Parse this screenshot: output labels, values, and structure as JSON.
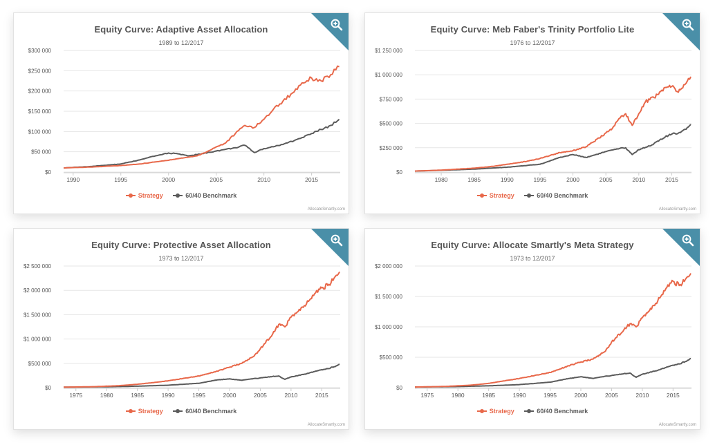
{
  "colors": {
    "strategy": "#e8684a",
    "benchmark": "#5b5b5b",
    "zoom_bg": "#4a8fa8",
    "grid": "#e6e6e6"
  },
  "legend": {
    "strategy": "Strategy",
    "benchmark": "60/40 Benchmark"
  },
  "credit": "AllocateSmartly.com",
  "chart_data": [
    {
      "type": "line",
      "title": "Equity Curve: Adaptive Asset Allocation",
      "subtitle": "1989 to 12/2017",
      "xlim": [
        1989,
        2018
      ],
      "ylim": [
        0,
        300000
      ],
      "x_ticks": [
        1990,
        1995,
        2000,
        2005,
        2010,
        2015
      ],
      "y_ticks": [
        0,
        50000,
        100000,
        150000,
        200000,
        250000,
        300000
      ],
      "y_tick_labels": [
        "$0",
        "$50 000",
        "$100 000",
        "$150 000",
        "$200 000",
        "$250 000",
        "$300 000"
      ],
      "series": [
        {
          "name": "Strategy",
          "points": [
            [
              1989,
              10000
            ],
            [
              1990,
              11000
            ],
            [
              1992,
              12500
            ],
            [
              1995,
              16000
            ],
            [
              1997,
              20000
            ],
            [
              1999,
              26000
            ],
            [
              2001,
              33000
            ],
            [
              2003,
              40000
            ],
            [
              2004,
              50000
            ],
            [
              2005,
              62000
            ],
            [
              2006,
              72000
            ],
            [
              2007,
              95000
            ],
            [
              2008,
              115000
            ],
            [
              2009,
              110000
            ],
            [
              2010,
              130000
            ],
            [
              2011,
              155000
            ],
            [
              2012,
              175000
            ],
            [
              2013,
              195000
            ],
            [
              2014,
              220000
            ],
            [
              2015,
              232000
            ],
            [
              2016,
              225000
            ],
            [
              2017,
              240000
            ],
            [
              2017.9,
              260000
            ]
          ]
        },
        {
          "name": "60/40 Benchmark",
          "points": [
            [
              1989,
              10000
            ],
            [
              1990,
              11500
            ],
            [
              1992,
              14000
            ],
            [
              1995,
              20000
            ],
            [
              1997,
              30000
            ],
            [
              1999,
              42000
            ],
            [
              2000,
              47000
            ],
            [
              2001,
              45000
            ],
            [
              2002,
              40000
            ],
            [
              2003,
              43000
            ],
            [
              2005,
              52000
            ],
            [
              2007,
              60000
            ],
            [
              2008,
              66000
            ],
            [
              2009,
              48000
            ],
            [
              2010,
              58000
            ],
            [
              2012,
              68000
            ],
            [
              2014,
              85000
            ],
            [
              2015,
              95000
            ],
            [
              2016,
              105000
            ],
            [
              2017,
              115000
            ],
            [
              2017.9,
              130000
            ]
          ]
        }
      ]
    },
    {
      "type": "line",
      "title": "Equity Curve: Meb Faber's Trinity Portfolio Lite",
      "subtitle": "1976 to 12/2017",
      "xlim": [
        1976,
        2018
      ],
      "ylim": [
        0,
        1250000
      ],
      "x_ticks": [
        1980,
        1985,
        1990,
        1995,
        2000,
        2005,
        2010,
        2015
      ],
      "y_ticks": [
        0,
        250000,
        500000,
        750000,
        1000000,
        1250000
      ],
      "y_tick_labels": [
        "$0",
        "$250 000",
        "$500 000",
        "$750 000",
        "$1 000 000",
        "$1 250 000"
      ],
      "series": [
        {
          "name": "Strategy",
          "points": [
            [
              1976,
              10000
            ],
            [
              1980,
              20000
            ],
            [
              1985,
              40000
            ],
            [
              1988,
              60000
            ],
            [
              1990,
              80000
            ],
            [
              1993,
              110000
            ],
            [
              1995,
              140000
            ],
            [
              1998,
              200000
            ],
            [
              2000,
              220000
            ],
            [
              2002,
              260000
            ],
            [
              2004,
              350000
            ],
            [
              2006,
              450000
            ],
            [
              2007,
              550000
            ],
            [
              2008,
              600000
            ],
            [
              2009,
              480000
            ],
            [
              2010,
              600000
            ],
            [
              2011,
              720000
            ],
            [
              2013,
              800000
            ],
            [
              2014,
              870000
            ],
            [
              2015,
              880000
            ],
            [
              2016,
              820000
            ],
            [
              2017,
              900000
            ],
            [
              2017.9,
              980000
            ]
          ]
        },
        {
          "name": "60/40 Benchmark",
          "points": [
            [
              1976,
              10000
            ],
            [
              1980,
              18000
            ],
            [
              1985,
              30000
            ],
            [
              1990,
              50000
            ],
            [
              1995,
              80000
            ],
            [
              1998,
              150000
            ],
            [
              2000,
              180000
            ],
            [
              2002,
              150000
            ],
            [
              2003,
              170000
            ],
            [
              2005,
              210000
            ],
            [
              2007,
              240000
            ],
            [
              2008,
              250000
            ],
            [
              2009,
              180000
            ],
            [
              2010,
              230000
            ],
            [
              2012,
              280000
            ],
            [
              2014,
              360000
            ],
            [
              2015,
              390000
            ],
            [
              2016,
              400000
            ],
            [
              2017,
              440000
            ],
            [
              2017.9,
              490000
            ]
          ]
        }
      ]
    },
    {
      "type": "line",
      "title": "Equity Curve: Protective Asset Allocation",
      "subtitle": "1973 to 12/2017",
      "xlim": [
        1973,
        2018
      ],
      "ylim": [
        0,
        2500000
      ],
      "x_ticks": [
        1975,
        1980,
        1985,
        1990,
        1995,
        2000,
        2005,
        2010,
        2015
      ],
      "y_ticks": [
        0,
        500000,
        1000000,
        1500000,
        2000000,
        2500000
      ],
      "y_tick_labels": [
        "$0",
        "$500 000",
        "$1 000 000",
        "$1 500 000",
        "$2 000 000",
        "$2 500 000"
      ],
      "series": [
        {
          "name": "Strategy",
          "points": [
            [
              1973,
              10000
            ],
            [
              1978,
              20000
            ],
            [
              1982,
              40000
            ],
            [
              1985,
              70000
            ],
            [
              1988,
              110000
            ],
            [
              1990,
              140000
            ],
            [
              1993,
              200000
            ],
            [
              1995,
              240000
            ],
            [
              1998,
              340000
            ],
            [
              2000,
              420000
            ],
            [
              2002,
              500000
            ],
            [
              2004,
              650000
            ],
            [
              2005,
              800000
            ],
            [
              2007,
              1100000
            ],
            [
              2008,
              1300000
            ],
            [
              2009,
              1250000
            ],
            [
              2010,
              1450000
            ],
            [
              2012,
              1650000
            ],
            [
              2013,
              1800000
            ],
            [
              2014,
              1950000
            ],
            [
              2015,
              2050000
            ],
            [
              2016,
              2100000
            ],
            [
              2017,
              2250000
            ],
            [
              2017.9,
              2380000
            ]
          ]
        },
        {
          "name": "60/40 Benchmark",
          "points": [
            [
              1973,
              10000
            ],
            [
              1980,
              18000
            ],
            [
              1985,
              30000
            ],
            [
              1990,
              50000
            ],
            [
              1995,
              90000
            ],
            [
              1998,
              160000
            ],
            [
              2000,
              180000
            ],
            [
              2002,
              150000
            ],
            [
              2003,
              170000
            ],
            [
              2005,
              200000
            ],
            [
              2007,
              230000
            ],
            [
              2008,
              240000
            ],
            [
              2009,
              170000
            ],
            [
              2010,
              220000
            ],
            [
              2012,
              270000
            ],
            [
              2014,
              340000
            ],
            [
              2015,
              370000
            ],
            [
              2016,
              390000
            ],
            [
              2017,
              430000
            ],
            [
              2017.9,
              480000
            ]
          ]
        }
      ]
    },
    {
      "type": "line",
      "title": "Equity Curve: Allocate Smartly's Meta Strategy",
      "subtitle": "1973 to 12/2017",
      "xlim": [
        1973,
        2018
      ],
      "ylim": [
        0,
        2000000
      ],
      "x_ticks": [
        1975,
        1980,
        1985,
        1990,
        1995,
        2000,
        2005,
        2010,
        2015
      ],
      "y_ticks": [
        0,
        500000,
        1000000,
        1500000,
        2000000
      ],
      "y_tick_labels": [
        "$0",
        "$500 000",
        "$1 000 000",
        "$1 500 000",
        "$2 000 000"
      ],
      "series": [
        {
          "name": "Strategy",
          "points": [
            [
              1973,
              10000
            ],
            [
              1978,
              20000
            ],
            [
              1982,
              40000
            ],
            [
              1985,
              70000
            ],
            [
              1988,
              120000
            ],
            [
              1990,
              150000
            ],
            [
              1993,
              210000
            ],
            [
              1995,
              250000
            ],
            [
              1998,
              360000
            ],
            [
              2000,
              420000
            ],
            [
              2002,
              470000
            ],
            [
              2004,
              600000
            ],
            [
              2005,
              750000
            ],
            [
              2007,
              950000
            ],
            [
              2008,
              1050000
            ],
            [
              2009,
              1000000
            ],
            [
              2010,
              1150000
            ],
            [
              2012,
              1350000
            ],
            [
              2013,
              1500000
            ],
            [
              2014,
              1650000
            ],
            [
              2015,
              1750000
            ],
            [
              2016,
              1680000
            ],
            [
              2017,
              1780000
            ],
            [
              2017.9,
              1880000
            ]
          ]
        },
        {
          "name": "60/40 Benchmark",
          "points": [
            [
              1973,
              10000
            ],
            [
              1980,
              18000
            ],
            [
              1985,
              30000
            ],
            [
              1990,
              50000
            ],
            [
              1995,
              90000
            ],
            [
              1998,
              150000
            ],
            [
              2000,
              180000
            ],
            [
              2002,
              150000
            ],
            [
              2003,
              170000
            ],
            [
              2005,
              200000
            ],
            [
              2007,
              230000
            ],
            [
              2008,
              240000
            ],
            [
              2009,
              170000
            ],
            [
              2010,
              220000
            ],
            [
              2012,
              270000
            ],
            [
              2014,
              340000
            ],
            [
              2015,
              370000
            ],
            [
              2016,
              390000
            ],
            [
              2017,
              430000
            ],
            [
              2017.9,
              480000
            ]
          ]
        }
      ]
    }
  ]
}
